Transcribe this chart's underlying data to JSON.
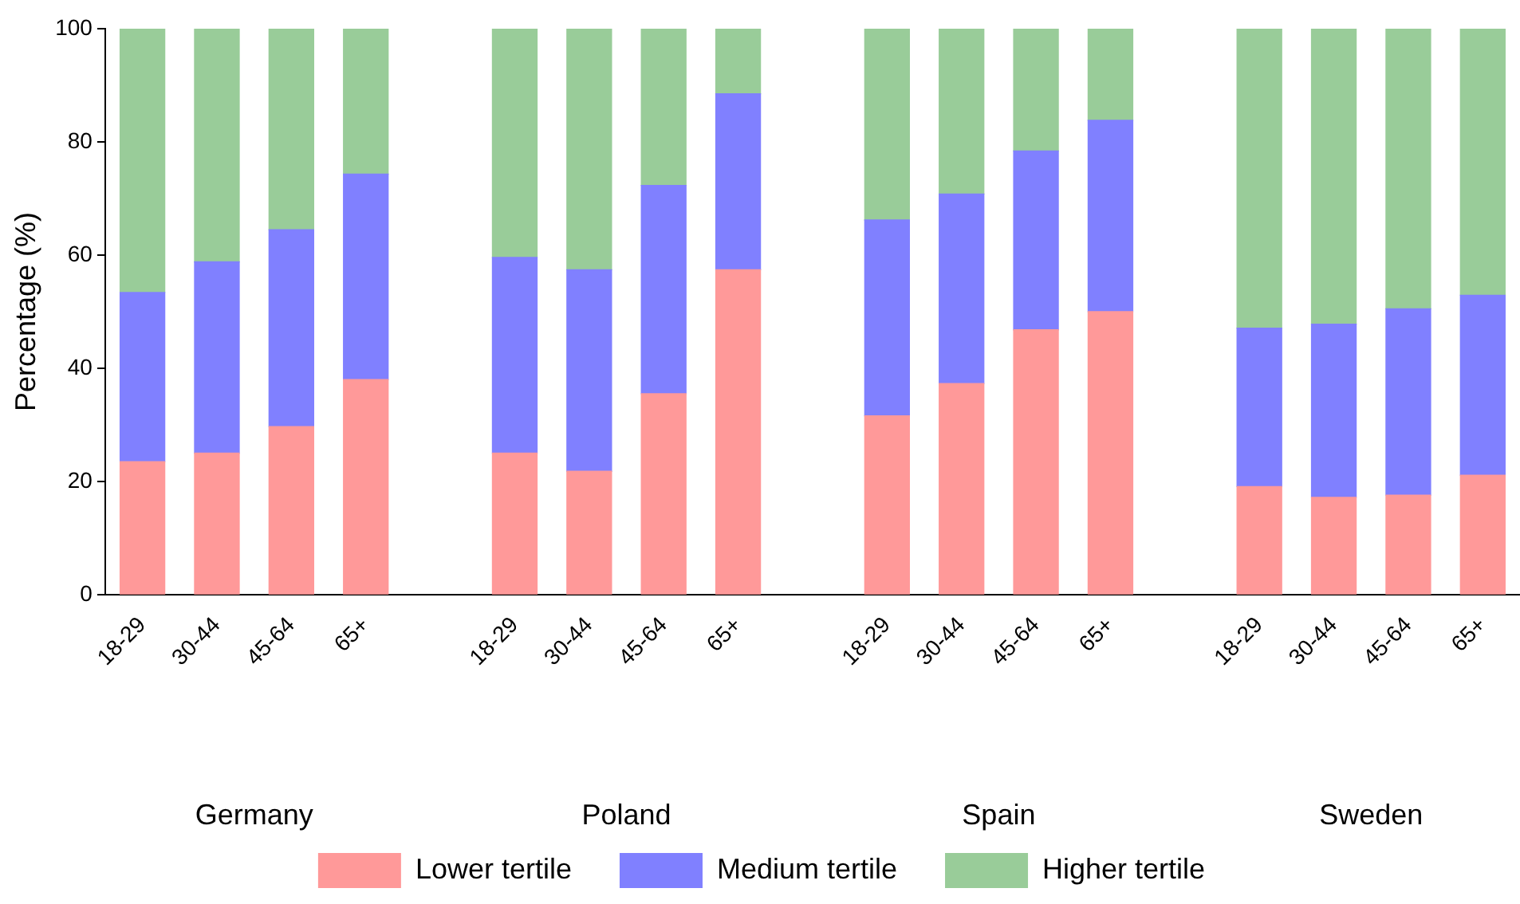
{
  "chart_data": {
    "type": "bar",
    "stacked": true,
    "ylabel": "Percentage (%)",
    "categories": [
      "18-29",
      "30-44",
      "45-64",
      "65+",
      null,
      "18-29",
      "30-44",
      "45-64",
      "65+",
      null,
      "18-29",
      "30-44",
      "45-64",
      "65+",
      null,
      "18-29",
      "30-44",
      "45-64",
      "65+"
    ],
    "annotations": [
      "Germany",
      "Poland",
      "Spain",
      "Sweden"
    ],
    "series": [
      {
        "name": "Lower tertile",
        "color": "#ff9999",
        "values": [
          23.5,
          25.0,
          29.7,
          38.0,
          null,
          25.0,
          21.8,
          35.5,
          57.4,
          null,
          31.6,
          37.3,
          46.8,
          50.0,
          null,
          19.1,
          17.2,
          17.6,
          21.1
        ]
      },
      {
        "name": "Medium tertile",
        "color": "#8080ff",
        "values": [
          29.9,
          33.8,
          34.8,
          36.3,
          null,
          34.6,
          35.6,
          36.8,
          31.1,
          null,
          34.6,
          33.5,
          31.6,
          33.8,
          null,
          28.0,
          30.6,
          32.9,
          31.8
        ]
      },
      {
        "name": "Higher tertile",
        "color": "#99cc99",
        "values": [
          46.6,
          41.2,
          35.5,
          25.7,
          null,
          40.4,
          42.6,
          27.7,
          11.5,
          null,
          33.8,
          29.2,
          21.6,
          16.2,
          null,
          52.9,
          52.2,
          49.5,
          47.1
        ]
      }
    ],
    "ylim": [
      0,
      100
    ],
    "yticks": [
      0,
      20,
      40,
      60,
      80,
      100
    ],
    "grid": false,
    "legend": "bottom"
  }
}
